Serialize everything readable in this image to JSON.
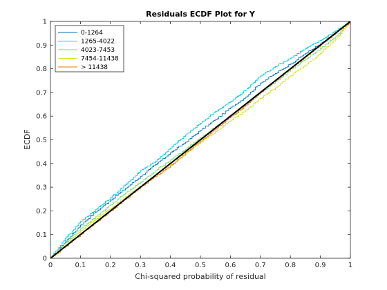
{
  "chart_data": {
    "type": "line",
    "title": "Residuals ECDF Plot for Y",
    "xlabel": "Chi-squared probability of residual",
    "ylabel": "ECDF",
    "xlim": [
      0,
      1
    ],
    "ylim": [
      0,
      1
    ],
    "xticks": [
      "0",
      "0.1",
      "0.2",
      "0.3",
      "0.4",
      "0.5",
      "0.6",
      "0.7",
      "0.8",
      "0.9",
      "1"
    ],
    "yticks": [
      "0",
      "0.1",
      "0.2",
      "0.3",
      "0.4",
      "0.5",
      "0.6",
      "0.7",
      "0.8",
      "0.9",
      "1"
    ],
    "grid": false,
    "legend_position": "top-left",
    "reference_line": {
      "x": [
        0,
        1
      ],
      "y": [
        0,
        1
      ],
      "color": "#000000"
    },
    "series": [
      {
        "name": "0-1264",
        "color": "#0072BD",
        "x": [
          0,
          0.05,
          0.1,
          0.15,
          0.2,
          0.25,
          0.3,
          0.35,
          0.4,
          0.45,
          0.5,
          0.55,
          0.6,
          0.65,
          0.7,
          0.75,
          0.8,
          0.85,
          0.9,
          0.95,
          1
        ],
        "y": [
          0,
          0.07,
          0.14,
          0.195,
          0.245,
          0.295,
          0.345,
          0.395,
          0.445,
          0.49,
          0.54,
          0.585,
          0.635,
          0.68,
          0.74,
          0.78,
          0.82,
          0.865,
          0.905,
          0.95,
          1
        ]
      },
      {
        "name": "1265-4022",
        "color": "#00C8DC",
        "x": [
          0,
          0.05,
          0.1,
          0.15,
          0.2,
          0.25,
          0.3,
          0.35,
          0.4,
          0.45,
          0.5,
          0.55,
          0.6,
          0.65,
          0.7,
          0.75,
          0.8,
          0.85,
          0.9,
          0.95,
          1
        ],
        "y": [
          0,
          0.085,
          0.155,
          0.205,
          0.255,
          0.31,
          0.37,
          0.41,
          0.465,
          0.52,
          0.57,
          0.62,
          0.66,
          0.71,
          0.77,
          0.81,
          0.845,
          0.885,
          0.92,
          0.96,
          1
        ]
      },
      {
        "name": "4023-7453",
        "color": "#77DD77",
        "x": [
          0,
          0.05,
          0.1,
          0.15,
          0.2,
          0.25,
          0.3,
          0.35,
          0.4,
          0.45,
          0.5,
          0.55,
          0.6,
          0.65,
          0.7,
          0.75,
          0.8,
          0.85,
          0.9,
          0.95,
          1
        ],
        "y": [
          0,
          0.065,
          0.125,
          0.175,
          0.225,
          0.275,
          0.32,
          0.37,
          0.415,
          0.46,
          0.51,
          0.555,
          0.6,
          0.645,
          0.7,
          0.745,
          0.795,
          0.84,
          0.885,
          0.935,
          1
        ]
      },
      {
        "name": "7454-11438",
        "color": "#D4E21A",
        "x": [
          0,
          0.05,
          0.1,
          0.15,
          0.2,
          0.25,
          0.3,
          0.35,
          0.4,
          0.45,
          0.5,
          0.55,
          0.6,
          0.65,
          0.7,
          0.75,
          0.8,
          0.85,
          0.9,
          0.95,
          1
        ],
        "y": [
          0,
          0.055,
          0.115,
          0.165,
          0.21,
          0.26,
          0.305,
          0.35,
          0.395,
          0.44,
          0.49,
          0.535,
          0.58,
          0.625,
          0.675,
          0.72,
          0.77,
          0.815,
          0.865,
          0.925,
          1
        ]
      },
      {
        "name": "> 11438",
        "color": "#E87A00",
        "x": [
          0,
          0.05,
          0.1,
          0.15,
          0.2,
          0.25,
          0.3,
          0.35,
          0.4,
          0.45,
          0.5,
          0.55,
          0.6,
          0.65,
          0.7,
          0.75,
          0.8,
          0.85,
          0.9,
          0.95,
          1
        ],
        "y": [
          0,
          0.05,
          0.1,
          0.15,
          0.2,
          0.25,
          0.3,
          0.345,
          0.39,
          0.445,
          0.495,
          0.545,
          0.595,
          0.645,
          0.7,
          0.75,
          0.8,
          0.85,
          0.9,
          0.95,
          1
        ]
      }
    ]
  }
}
